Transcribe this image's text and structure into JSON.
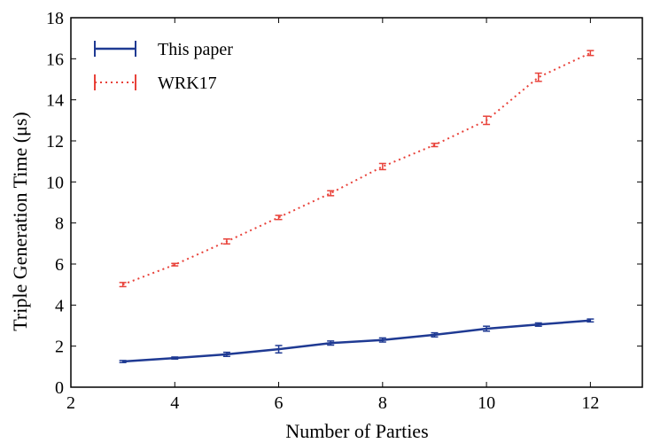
{
  "chart_data": {
    "type": "line",
    "title": "",
    "xlabel": "Number of Parties",
    "ylabel": "Triple Generation Time (μs)",
    "xlim": [
      2,
      13
    ],
    "ylim": [
      0,
      18
    ],
    "xticks": [
      "2",
      "4",
      "6",
      "8",
      "10",
      "12"
    ],
    "yticks": [
      "0",
      "2",
      "4",
      "6",
      "8",
      "10",
      "12",
      "14",
      "16",
      "18"
    ],
    "grid": false,
    "legend_position": "top-left",
    "series": [
      {
        "name": "This paper",
        "color": "#1f3a93",
        "style": "solid",
        "x": [
          3,
          4,
          5,
          6,
          7,
          8,
          9,
          10,
          11,
          12
        ],
        "y": [
          1.25,
          1.42,
          1.6,
          1.85,
          2.15,
          2.3,
          2.55,
          2.85,
          3.05,
          3.25
        ],
        "err": [
          0.05,
          0.05,
          0.1,
          0.18,
          0.1,
          0.1,
          0.1,
          0.12,
          0.08,
          0.07
        ]
      },
      {
        "name": "WRK17",
        "color": "#e8423a",
        "style": "dotted",
        "x": [
          3,
          4,
          5,
          6,
          7,
          8,
          9,
          10,
          11,
          12
        ],
        "y": [
          5.0,
          5.97,
          7.1,
          8.27,
          9.45,
          10.75,
          11.8,
          13.0,
          15.1,
          16.28
        ],
        "err": [
          0.1,
          0.06,
          0.12,
          0.1,
          0.12,
          0.15,
          0.08,
          0.2,
          0.2,
          0.12
        ]
      }
    ]
  }
}
